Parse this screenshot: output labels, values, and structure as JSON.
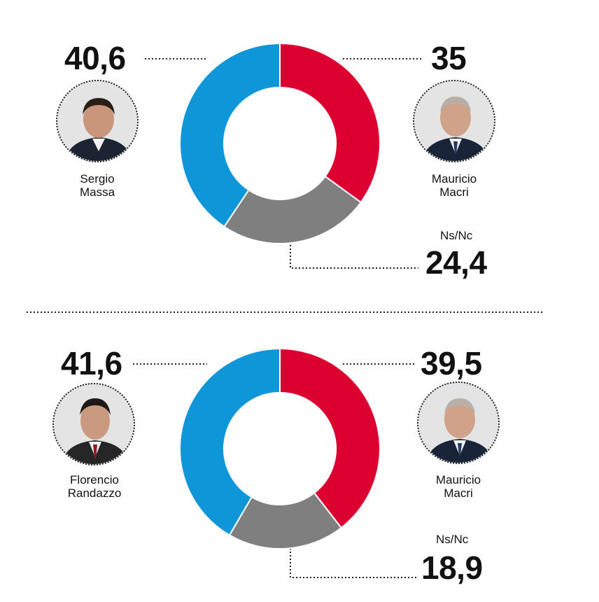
{
  "colors": {
    "blue": "#0e96d8",
    "red": "#dc0030",
    "gray": "#7f7f7f",
    "text": "#111111"
  },
  "chart_data": [
    {
      "type": "pie",
      "categories": [
        "Sergio Massa",
        "Mauricio Macri",
        "Ns/Nc"
      ],
      "values": [
        40.6,
        35,
        24.4
      ],
      "value_labels": [
        "40,6",
        "35",
        "24,4"
      ],
      "colors": [
        "#0e96d8",
        "#dc0030",
        "#7f7f7f"
      ],
      "donut": true
    },
    {
      "type": "pie",
      "categories": [
        "Florencio Randazzo",
        "Mauricio Macri",
        "Ns/Nc"
      ],
      "values": [
        41.6,
        39.5,
        18.9
      ],
      "value_labels": [
        "41,6",
        "39,5",
        "18,9"
      ],
      "colors": [
        "#0e96d8",
        "#dc0030",
        "#7f7f7f"
      ],
      "donut": true
    }
  ],
  "chart1": {
    "left": {
      "value": "40,6",
      "name_line1": "Sergio",
      "name_line2": "Massa",
      "photo": "portrait-photo"
    },
    "right": {
      "value": "35",
      "name_line1": "Mauricio",
      "name_line2": "Macri",
      "photo": "portrait-photo"
    },
    "other": {
      "label": "Ns/Nc",
      "value": "24,4"
    }
  },
  "chart2": {
    "left": {
      "value": "41,6",
      "name_line1": "Florencio",
      "name_line2": "Randazzo",
      "photo": "portrait-photo"
    },
    "right": {
      "value": "39,5",
      "name_line1": "Mauricio",
      "name_line2": "Macri",
      "photo": "portrait-photo"
    },
    "other": {
      "label": "Ns/Nc",
      "value": "18,9"
    }
  }
}
